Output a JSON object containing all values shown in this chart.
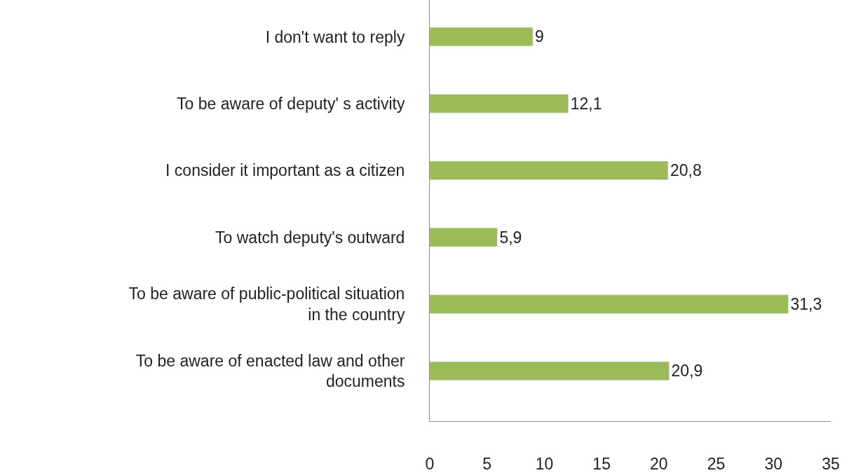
{
  "chart_data": {
    "type": "bar",
    "orientation": "horizontal",
    "categories": [
      "I don't want to reply",
      "To be aware of deputy' s activity",
      "I consider it important as a citizen",
      "To watch deputy's outward",
      "To be aware of public-political situation\nin the country",
      "To be aware of enacted law and other\ndocuments"
    ],
    "values": [
      9,
      12.1,
      20.8,
      5.9,
      31.3,
      20.9
    ],
    "value_labels": [
      "9",
      "12,1",
      "20,8",
      "5,9",
      "31,3",
      "20,9"
    ],
    "color": "#9bbb59",
    "xlim": [
      0,
      35
    ],
    "xticks": [
      0,
      5,
      10,
      15,
      20,
      25,
      30,
      35
    ],
    "legend": false
  }
}
